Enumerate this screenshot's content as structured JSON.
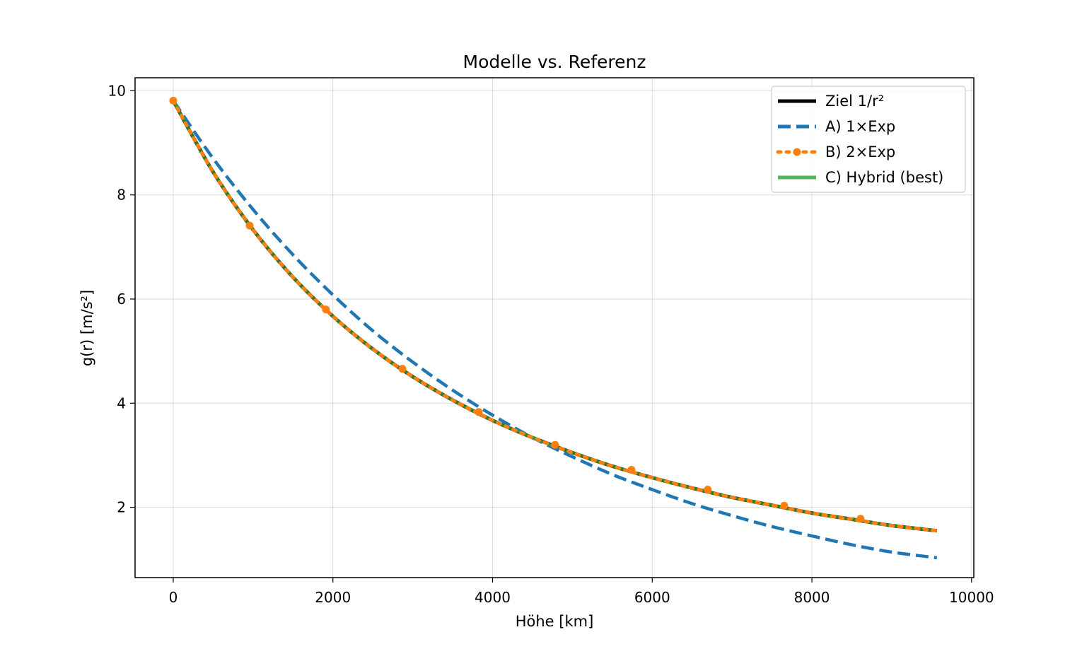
{
  "chart_data": {
    "type": "line",
    "title": "Modelle vs. Referenz",
    "xlabel": "Höhe [km]",
    "ylabel": "g(r) [m/s²]",
    "xlim": [
      -478,
      10028
    ],
    "ylim": [
      0.65,
      10.25
    ],
    "x_ticks": [
      0,
      2000,
      4000,
      6000,
      8000,
      10000
    ],
    "x_tick_labels": [
      "0",
      "2000",
      "4000",
      "6000",
      "8000",
      "10000"
    ],
    "y_ticks": [
      2,
      4,
      6,
      8,
      10
    ],
    "y_tick_labels": [
      "2",
      "4",
      "6",
      "8",
      "10"
    ],
    "grid": true,
    "legend_position": "top-right",
    "x": [
      0,
      500,
      1000,
      1500,
      2000,
      2500,
      3000,
      3500,
      4000,
      4500,
      5000,
      5500,
      6000,
      6500,
      7000,
      7500,
      8000,
      8500,
      9000,
      9566
    ],
    "series": [
      {
        "name": "Ziel 1/r²",
        "color": "#000000",
        "style": "solid",
        "values": [
          9.81,
          8.44,
          7.33,
          6.42,
          5.67,
          5.04,
          4.51,
          4.06,
          3.67,
          3.34,
          3.05,
          2.79,
          2.57,
          2.37,
          2.19,
          2.04,
          1.89,
          1.77,
          1.65,
          1.55
        ]
      },
      {
        "name": "A) 1×Exp",
        "color": "#1f77b4",
        "style": "dashed",
        "values": [
          9.81,
          8.7,
          7.72,
          6.85,
          6.08,
          5.39,
          4.79,
          4.25,
          3.77,
          3.34,
          2.97,
          2.63,
          2.34,
          2.07,
          1.84,
          1.63,
          1.45,
          1.28,
          1.14,
          1.03
        ]
      },
      {
        "name": "B) 2×Exp",
        "color": "#ff7f0e",
        "style": "dotted",
        "values": [
          9.81,
          8.44,
          7.33,
          6.42,
          5.67,
          5.04,
          4.51,
          4.06,
          3.67,
          3.34,
          3.05,
          2.79,
          2.57,
          2.37,
          2.19,
          2.04,
          1.89,
          1.77,
          1.65,
          1.55
        ],
        "markers_x": [
          0,
          957,
          1913,
          2870,
          3826,
          4783,
          5740,
          6696,
          7653,
          8609
        ],
        "markers_y": [
          9.81,
          7.41,
          5.8,
          4.66,
          3.83,
          3.2,
          2.72,
          2.34,
          2.03,
          1.78
        ]
      },
      {
        "name": "C) Hybrid (best)",
        "color": "#2ca02c",
        "style": "solid",
        "values": [
          9.81,
          8.44,
          7.33,
          6.42,
          5.67,
          5.04,
          4.51,
          4.06,
          3.67,
          3.34,
          3.05,
          2.79,
          2.57,
          2.37,
          2.19,
          2.04,
          1.89,
          1.77,
          1.65,
          1.55
        ]
      }
    ]
  }
}
